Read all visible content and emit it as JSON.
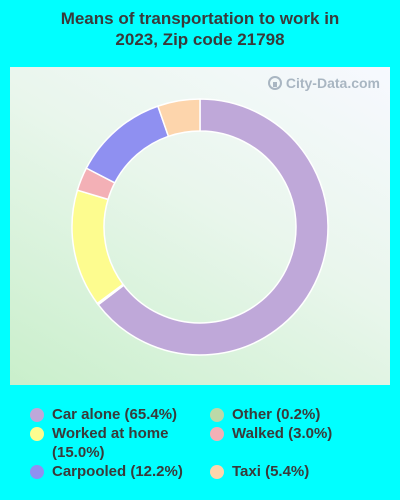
{
  "chart_data": {
    "type": "pie",
    "title_lines": [
      "Means of transportation to work in",
      "2023, Zip code 21798"
    ],
    "categories": [
      "Car alone",
      "Worked at home",
      "Walked",
      "Carpooled",
      "Taxi",
      "Other"
    ],
    "values": [
      65.4,
      15.0,
      3.0,
      12.2,
      5.4,
      0.2
    ],
    "colors": {
      "Car alone": "#bfa8d9",
      "Worked at home": "#fdfc8f",
      "Walked": "#f3b0b6",
      "Carpooled": "#8f90f1",
      "Taxi": "#fdd5ac",
      "Other": "#bcd9a8"
    },
    "draw_order": [
      "Car alone",
      "Other",
      "Worked at home",
      "Walked",
      "Carpooled",
      "Taxi"
    ],
    "donut": true
  },
  "watermark": {
    "text": "City-Data.com"
  },
  "legend": {
    "items": [
      {
        "name": "car-alone",
        "label": "Car alone (65.4%)",
        "color": "#bfa8d9"
      },
      {
        "name": "worked-at-home",
        "label": "Worked at home (15.0%)",
        "color": "#fdfc8f"
      },
      {
        "name": "carpooled",
        "label": "Carpooled (12.2%)",
        "color": "#8f90f1"
      },
      {
        "name": "other",
        "label": "Other (0.2%)",
        "color": "#bcd9a8"
      },
      {
        "name": "walked",
        "label": "Walked (3.0%)",
        "color": "#f3b0b6"
      },
      {
        "name": "taxi",
        "label": "Taxi (5.4%)",
        "color": "#fdd5ac"
      }
    ]
  }
}
